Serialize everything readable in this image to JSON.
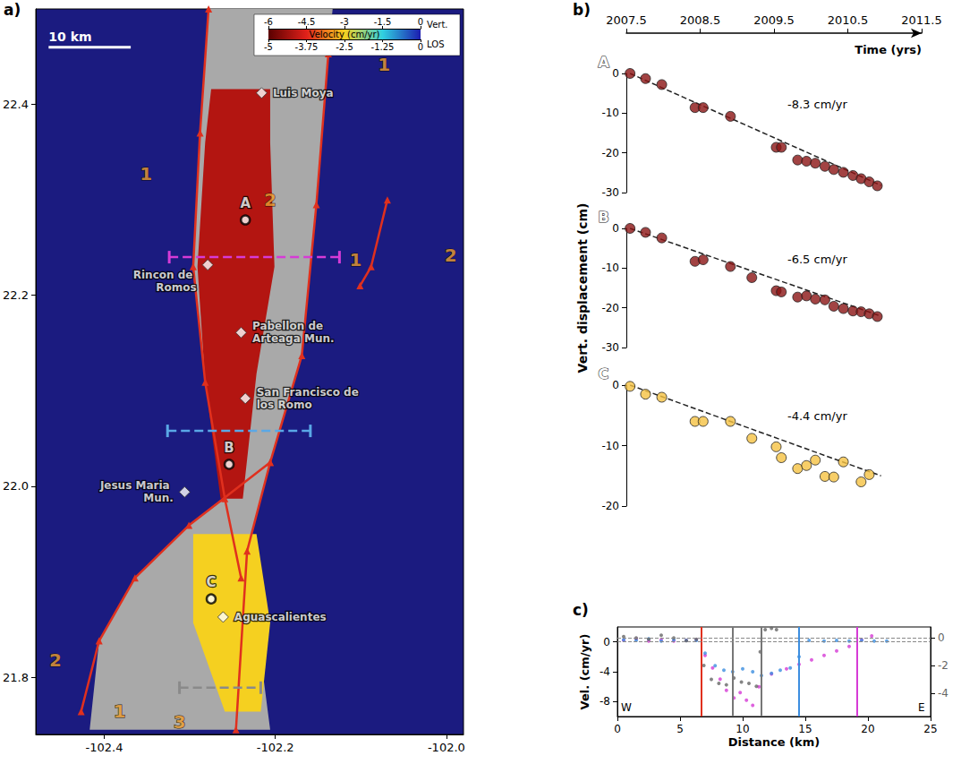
{
  "chart_data": [
    {
      "type": "map",
      "panel": "a)",
      "xlim": [
        -102.48,
        -101.98
      ],
      "xticks": [
        -102.4,
        -102.2,
        {
          "value": -102,
          "label": "-102.0"
        }
      ],
      "ylim": [
        21.74,
        22.5
      ],
      "yticks": [
        21.8,
        {
          "value": 22,
          "label": "22.0"
        },
        22.2,
        22.4
      ],
      "colorbar": {
        "title": "Velocity (cm/yr)",
        "scales": [
          {
            "label": "Vert.",
            "lim": [
              -6,
              0
            ],
            "ticks": [
              -6,
              -4.5,
              -3,
              -1.5,
              0
            ]
          },
          {
            "label": "LOS",
            "lim": [
              -5,
              0
            ],
            "ticks": [
              -5,
              -3.75,
              -2.5,
              -1.25,
              0
            ]
          }
        ]
      },
      "scale_bar": {
        "label": "10 km",
        "x": [
          -102.465,
          -102.369
        ],
        "y": 22.46
      },
      "basin": [
        [
          -102.278,
          22.5
        ],
        [
          -102.288,
          22.37
        ],
        [
          -102.296,
          22.23
        ],
        [
          -102.282,
          22.109
        ],
        [
          -102.259,
          21.987
        ],
        [
          -102.301,
          21.959
        ],
        [
          -102.364,
          21.904
        ],
        [
          -102.406,
          21.838
        ],
        [
          -102.417,
          21.745
        ],
        [
          -102.206,
          21.745
        ],
        [
          -102.233,
          21.932
        ],
        [
          -102.206,
          22.025
        ],
        [
          -102.169,
          22.137
        ],
        [
          -102.152,
          22.295
        ],
        [
          -102.138,
          22.453
        ],
        [
          -102.133,
          22.5
        ]
      ],
      "subsidence_zones": [
        {
          "velocity": -5,
          "polygon": [
            [
              -102.275,
              22.416
            ],
            [
              -102.206,
              22.416
            ],
            [
              -102.206,
              22.36
            ],
            [
              -102.201,
              22.23
            ],
            [
              -102.222,
              22.118
            ],
            [
              -102.238,
              21.987
            ],
            [
              -102.264,
              21.987
            ],
            [
              -102.282,
              22.109
            ],
            [
              -102.291,
              22.23
            ],
            [
              -102.282,
              22.36
            ]
          ]
        },
        {
          "velocity": -3,
          "polygon": [
            [
              -102.296,
              21.95
            ],
            [
              -102.222,
              21.95
            ],
            [
              -102.206,
              21.857
            ],
            [
              -102.217,
              21.764
            ],
            [
              -102.259,
              21.764
            ],
            [
              -102.296,
              21.857
            ]
          ]
        }
      ],
      "faults": [
        [
          [
            -102.278,
            22.5
          ],
          [
            -102.288,
            22.37
          ],
          [
            -102.296,
            22.23
          ],
          [
            -102.282,
            22.109
          ],
          [
            -102.259,
            21.987
          ],
          [
            -102.24,
            21.904
          ]
        ],
        [
          [
            -102.138,
            22.453
          ],
          [
            -102.152,
            22.295
          ],
          [
            -102.169,
            22.137
          ],
          [
            -102.206,
            22.025
          ],
          [
            -102.233,
            21.932
          ],
          [
            -102.246,
            21.745
          ]
        ],
        [
          [
            -102.206,
            22.025
          ],
          [
            -102.301,
            21.959
          ],
          [
            -102.364,
            21.904
          ],
          [
            -102.406,
            21.838
          ],
          [
            -102.427,
            21.764
          ]
        ],
        [
          [
            -102.069,
            22.3
          ],
          [
            -102.088,
            22.23
          ],
          [
            -102.101,
            22.21
          ]
        ]
      ],
      "profiles": [
        {
          "color": "#d63bd6",
          "x": [
            -102.324,
            -102.125
          ],
          "y": 22.24
        },
        {
          "color": "#5aa8e6",
          "x": [
            -102.326,
            -102.159
          ],
          "y": 22.058
        },
        {
          "color": "#8a8a8a",
          "x": [
            -102.312,
            -102.217
          ],
          "y": 21.789
        }
      ],
      "towns": [
        {
          "name": "Luis Moya",
          "x": -102.216,
          "y": 22.412
        },
        {
          "name": "Rincon de Romos",
          "x": -102.279,
          "y": 22.232
        },
        {
          "name": "Pabellon de Arteaga Mun.",
          "x": -102.24,
          "y": 22.161
        },
        {
          "name": "San Francisco de los Romo",
          "x": -102.235,
          "y": 22.092
        },
        {
          "name": "Jesus Maria Mun.",
          "x": -102.306,
          "y": 21.994
        },
        {
          "name": "Aguascalientes",
          "x": -102.261,
          "y": 21.863
        }
      ],
      "points": [
        {
          "name": "A",
          "x": -102.235,
          "y": 22.279
        },
        {
          "name": "B",
          "x": -102.254,
          "y": 22.023
        },
        {
          "name": "C",
          "x": -102.275,
          "y": 21.882
        }
      ],
      "units": [
        {
          "label": "1",
          "x": -102.351,
          "y": 22.327
        },
        {
          "label": "2",
          "x": -102.206,
          "y": 22.3
        },
        {
          "label": "1",
          "x": -102.073,
          "y": 22.442
        },
        {
          "label": "1",
          "x": -102.106,
          "y": 22.237
        },
        {
          "label": "2",
          "x": -101.995,
          "y": 22.242
        },
        {
          "label": "2",
          "x": -102.457,
          "y": 21.818
        },
        {
          "label": "1",
          "x": -102.382,
          "y": 21.764
        },
        {
          "label": "3",
          "x": -102.312,
          "y": 21.753
        }
      ]
    },
    {
      "type": "scatter",
      "panel": "b)",
      "x_label": "Time (yrs)",
      "y_label": "Vert. displacement (cm)",
      "xlim": [
        2007.5,
        2011.5
      ],
      "xticks": [
        2007.5,
        2008.5,
        2009.5,
        2010.5,
        2011.5
      ],
      "marker": "circle",
      "panels": [
        {
          "letter": "A",
          "annotation": "-8.3 cm/yr",
          "color": "#8b1414",
          "ylim": [
            -30,
            0
          ],
          "yticks": [
            -30,
            -20,
            -10,
            0
          ],
          "x": [
            2007.55,
            2007.76,
            2007.98,
            2008.43,
            2008.54,
            2008.91,
            2009.53,
            2009.6,
            2009.82,
            2009.94,
            2010.06,
            2010.19,
            2010.31,
            2010.44,
            2010.57,
            2010.68,
            2010.79,
            2010.9
          ],
          "values": [
            0,
            -1.3,
            -2.8,
            -8.6,
            -8.6,
            -10.8,
            -18.6,
            -18.6,
            -21.8,
            -22.1,
            -22.6,
            -23.4,
            -24.2,
            -24.9,
            -25.7,
            -26.5,
            -27.3,
            -28.3
          ],
          "trend": {
            "x": [
              2007.55,
              2010.95
            ],
            "values": [
              0,
              -28.2
            ],
            "line_style": "dashed"
          }
        },
        {
          "letter": "B",
          "annotation": "-6.5 cm/yr",
          "color": "#8b1414",
          "ylim": [
            -30,
            0
          ],
          "yticks": [
            -30,
            -20,
            -10,
            0
          ],
          "x": [
            2007.55,
            2007.76,
            2007.98,
            2008.43,
            2008.54,
            2008.91,
            2009.2,
            2009.53,
            2009.6,
            2009.82,
            2009.94,
            2010.06,
            2010.19,
            2010.31,
            2010.44,
            2010.57,
            2010.68,
            2010.79,
            2010.9
          ],
          "values": [
            0,
            -1.0,
            -2.4,
            -8.3,
            -7.9,
            -9.6,
            -12.4,
            -15.7,
            -16.0,
            -17.3,
            -17.0,
            -17.8,
            -18.0,
            -19.6,
            -20.2,
            -20.8,
            -21.0,
            -21.5,
            -22.2
          ],
          "trend": {
            "x": [
              2007.55,
              2010.95
            ],
            "values": [
              0,
              -22.1
            ],
            "line_style": "dashed"
          }
        },
        {
          "letter": "C",
          "annotation": "-4.4 cm/yr",
          "color": "#f5c242",
          "ylim": [
            -20,
            0
          ],
          "yticks": [
            -20,
            -10,
            0
          ],
          "x": [
            2007.55,
            2007.76,
            2007.98,
            2008.43,
            2008.54,
            2008.91,
            2009.2,
            2009.53,
            2009.6,
            2009.82,
            2009.94,
            2010.06,
            2010.19,
            2010.31,
            2010.44,
            2010.68,
            2010.79
          ],
          "values": [
            -0.2,
            -1.5,
            -2.0,
            -6.0,
            -6.0,
            -6.0,
            -8.8,
            -10.2,
            -12.0,
            -13.8,
            -13.3,
            -12.4,
            -15.1,
            -15.2,
            -12.7,
            -16.0,
            -14.8
          ],
          "trend": {
            "x": [
              2007.55,
              2010.95
            ],
            "values": [
              0,
              -15.0
            ],
            "line_style": "dashed"
          }
        }
      ]
    },
    {
      "type": "scatter",
      "panel": "c)",
      "x_label": "Distance (km)",
      "y_label": "Vel. (cm/yr)",
      "xlim": [
        0,
        25
      ],
      "xticks": [
        0,
        5,
        10,
        15,
        20,
        25
      ],
      "ylim": [
        -10,
        2
      ],
      "yticks": [
        -8,
        -4,
        0
      ],
      "y2lim": [
        -5.7,
        0.8
      ],
      "y2ticks": [
        -4,
        -2,
        0
      ],
      "corner_labels": [
        "W",
        "E"
      ],
      "marker": "circle",
      "series": [
        {
          "color": "#d63bd6",
          "x": [
            0.5,
            1.5,
            2.5,
            3.5,
            4.5,
            5.5,
            6.3,
            7.0,
            7.6,
            8.2,
            8.7,
            9.3,
            9.8,
            10.3,
            10.8,
            11.3,
            12.3,
            13.5,
            14.5,
            15.5,
            16.5,
            17.5,
            18.5,
            19.5,
            20.3
          ],
          "values": [
            0.2,
            0.4,
            0.1,
            0.3,
            0.1,
            0.2,
            0.3,
            -1.8,
            -3.5,
            -5.0,
            -6.5,
            -7.5,
            -6.8,
            -7.8,
            -8.5,
            -6.0,
            -4.3,
            -3.6,
            -3.0,
            -2.4,
            -1.8,
            -1.2,
            -0.6,
            0.3,
            0.8
          ]
        },
        {
          "color": "#3c8ee0",
          "x": [
            0.5,
            1.5,
            2.5,
            3.5,
            4.5,
            5.5,
            6.3,
            7.0,
            7.8,
            8.5,
            9.2,
            10.0,
            10.8,
            11.5,
            12.3,
            13.0,
            13.8,
            14.5,
            15.3,
            16.5,
            17.5,
            18.5,
            19.5,
            20.5,
            21.5
          ],
          "values": [
            0.3,
            0.2,
            0.4,
            0.1,
            0.3,
            0.2,
            0.2,
            -1.5,
            -3.2,
            -3.8,
            -4.0,
            -3.6,
            -4.0,
            -4.5,
            -4.2,
            -3.8,
            -3.5,
            -2.0,
            0.2,
            0.1,
            0.2,
            0.1,
            0.2,
            0.1,
            0.1
          ]
        },
        {
          "color": "#666666",
          "axis": "y2",
          "x": [
            0.5,
            1.5,
            2.5,
            3.5,
            4.5,
            5.5,
            6.3,
            6.9,
            7.5,
            8.1,
            8.7,
            9.3,
            9.9,
            10.5,
            11.1,
            11.4,
            11.8,
            12.3,
            12.7
          ],
          "values": [
            0.1,
            0.0,
            -0.1,
            0.2,
            0.0,
            -0.2,
            -0.1,
            -2.0,
            -3.0,
            -3.3,
            -3.4,
            -2.9,
            -3.2,
            -3.3,
            -3.5,
            -1.0,
            0.6,
            0.7,
            0.6
          ]
        }
      ],
      "vlines": [
        {
          "x": 6.7,
          "color": "#e0301e"
        },
        {
          "x": 9.2,
          "color": "#777777"
        },
        {
          "x": 11.5,
          "color": "#777777"
        },
        {
          "x": 14.5,
          "color": "#3c8ee0"
        },
        {
          "x": 19.1,
          "color": "#d63bd6"
        }
      ],
      "hlines": [
        {
          "axis": "y",
          "value": 0
        },
        {
          "axis": "y2",
          "value": 0
        }
      ]
    }
  ]
}
